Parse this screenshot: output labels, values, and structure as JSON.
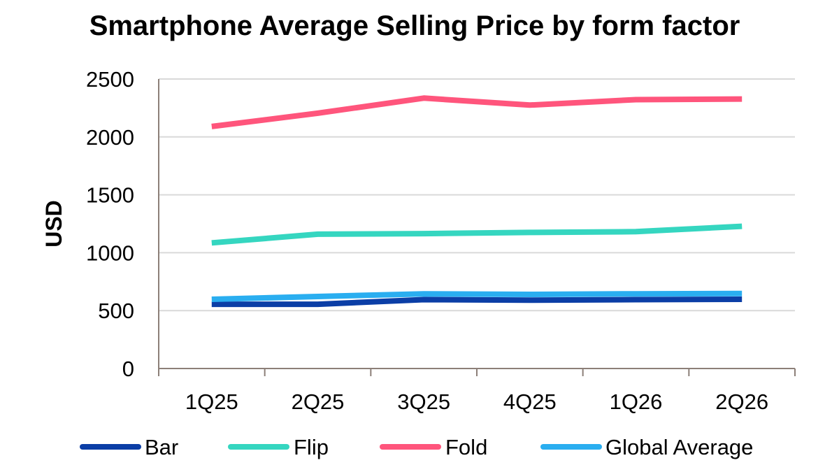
{
  "chart_data": {
    "type": "line",
    "title": "Smartphone Average Selling Price by form factor",
    "xlabel": "",
    "ylabel": "USD",
    "categories": [
      "1Q25",
      "2Q25",
      "3Q25",
      "4Q25",
      "1Q26",
      "2Q26"
    ],
    "ylim": [
      0,
      2500
    ],
    "yticks": [
      0,
      500,
      1000,
      1500,
      2000,
      2500
    ],
    "grid": true,
    "legend_position": "bottom",
    "series": [
      {
        "name": "Bar",
        "color": "#0b3ea6",
        "values": [
          555,
          555,
          595,
          590,
          595,
          598
        ]
      },
      {
        "name": "Flip",
        "color": "#35d6c0",
        "values": [
          1085,
          1160,
          1165,
          1175,
          1182,
          1228
        ]
      },
      {
        "name": "Fold",
        "color": "#ff557c",
        "values": [
          2090,
          2205,
          2335,
          2275,
          2322,
          2327
        ]
      },
      {
        "name": "Global Average",
        "color": "#2aaef0",
        "values": [
          598,
          622,
          645,
          640,
          645,
          648
        ]
      }
    ]
  }
}
